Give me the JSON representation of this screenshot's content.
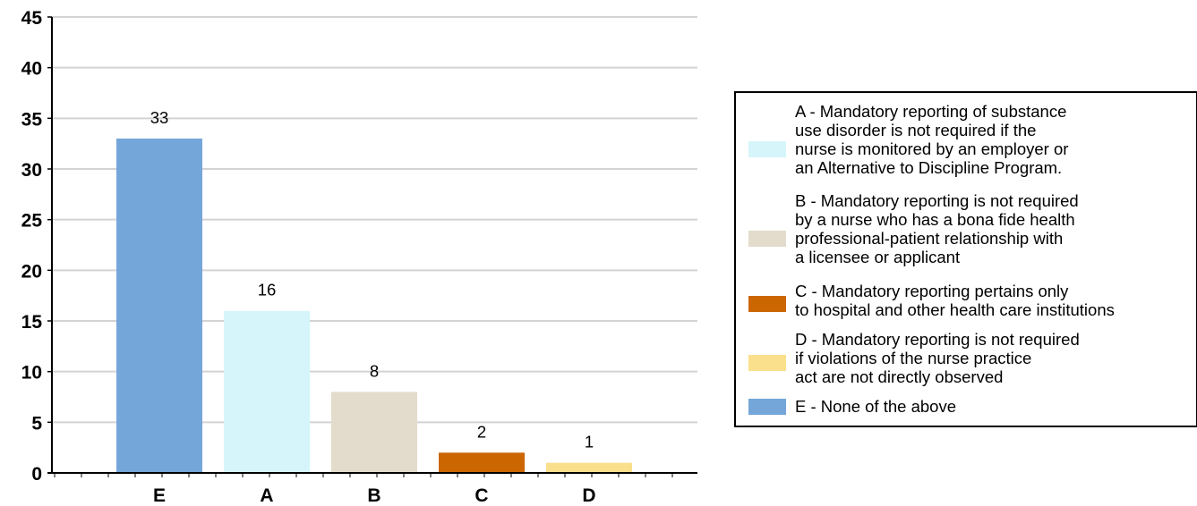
{
  "chart_data": {
    "type": "bar",
    "categories": [
      "E",
      "A",
      "B",
      "C",
      "D"
    ],
    "values": [
      33,
      16,
      8,
      2,
      1
    ],
    "data_labels": [
      "33",
      "16",
      "8",
      "2",
      "1"
    ],
    "colors": [
      "#74A6D9",
      "#D6F5FA",
      "#E3DCCC",
      "#CC6600",
      "#FAE08C"
    ],
    "ylim": [
      0,
      45
    ],
    "yticks": [
      0,
      5,
      10,
      15,
      20,
      25,
      30,
      35,
      40,
      45
    ],
    "ytick_labels": [
      "0",
      "5",
      "10",
      "15",
      "20",
      "25",
      "30",
      "35",
      "40",
      "45"
    ],
    "grid": true,
    "legend_position": "right",
    "title": "",
    "xlabel": "",
    "ylabel": ""
  },
  "legend": {
    "items": [
      {
        "color": "#D6F5FA",
        "text": "A - Mandatory reporting of substance\nuse disorder is not required if the\nnurse is monitored by an employer or\nan Alternative to Discipline Program."
      },
      {
        "color": "#E3DCCC",
        "text": "B - Mandatory reporting is not required\nby a nurse who has a bona fide health\nprofessional-patient relationship with\na licensee or applicant"
      },
      {
        "color": "#CC6600",
        "text": "C - Mandatory reporting pertains only\nto hospital and other health care institutions"
      },
      {
        "color": "#FAE08C",
        "text": "D - Mandatory reporting  is not required\nif violations of the nurse practice\nact are not directly observed"
      },
      {
        "color": "#74A6D9",
        "text": "E - None of the above"
      }
    ]
  }
}
